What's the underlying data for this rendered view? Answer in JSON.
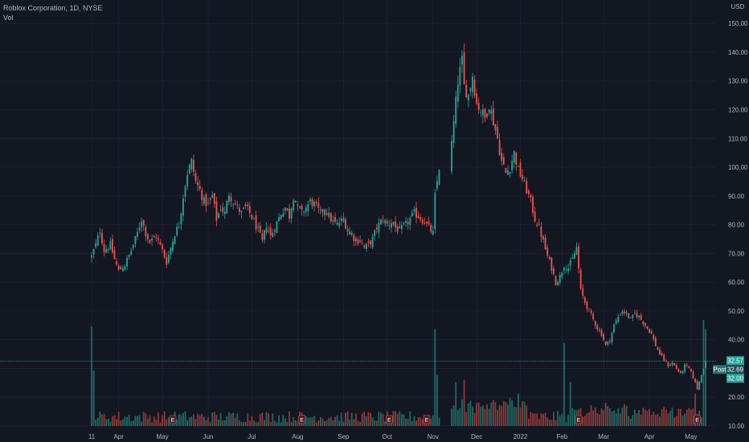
{
  "header": {
    "symbol_line": "Roblox Corporation, 1D, NYSE",
    "volume_label": "Vol",
    "currency": "USD"
  },
  "price_badges": {
    "close": "32.57",
    "post_label": "Post",
    "post": "32.69",
    "other": "32.00"
  },
  "earnings_marker": "E",
  "colors": {
    "background": "#131722",
    "grid": "#1e2230",
    "up": "#26a69a",
    "down": "#ef5350",
    "up_volume": "#1c6b64",
    "down_volume": "#8c3a38",
    "price_line": "#26a69a",
    "text": "#b2b5be",
    "earnings_badge": "#3d1f23"
  },
  "chart_data": {
    "type": "candlestick",
    "y_axis": {
      "ticks": [
        "150.00",
        "140.00",
        "130.00",
        "120.00",
        "110.00",
        "100.00",
        "90.00",
        "80.00",
        "70.00",
        "60.00",
        "50.00",
        "40.00",
        "30.00",
        "20.00",
        "10.00"
      ],
      "range": [
        10,
        152
      ]
    },
    "x_axis": {
      "labels": [
        "11",
        "Apr",
        "May",
        "Jun",
        "Jul",
        "Aug",
        "Sep",
        "Oct",
        "Nov",
        "Dec",
        "2022",
        "Feb",
        "Mar",
        "Apr",
        "May"
      ],
      "label_positions": [
        0,
        13,
        34,
        56,
        77,
        99,
        121,
        142,
        164,
        185,
        206,
        226,
        246,
        268,
        288
      ]
    },
    "total_bars": 296,
    "gap_bars": [
      [
        168,
        172
      ]
    ],
    "close_anchors": [
      [
        0,
        69
      ],
      [
        2,
        73
      ],
      [
        4,
        78
      ],
      [
        6,
        71
      ],
      [
        9,
        73
      ],
      [
        11,
        68
      ],
      [
        13,
        64
      ],
      [
        16,
        66
      ],
      [
        19,
        71
      ],
      [
        22,
        77
      ],
      [
        24,
        82
      ],
      [
        26,
        77
      ],
      [
        28,
        74
      ],
      [
        31,
        76
      ],
      [
        34,
        71
      ],
      [
        36,
        67
      ],
      [
        38,
        72
      ],
      [
        40,
        77
      ],
      [
        42,
        80
      ],
      [
        44,
        90
      ],
      [
        46,
        98
      ],
      [
        48,
        102
      ],
      [
        50,
        95
      ],
      [
        52,
        92
      ],
      [
        54,
        88
      ],
      [
        56,
        87
      ],
      [
        58,
        90
      ],
      [
        60,
        82
      ],
      [
        62,
        86
      ],
      [
        64,
        84
      ],
      [
        66,
        91
      ],
      [
        68,
        88
      ],
      [
        70,
        86
      ],
      [
        72,
        84
      ],
      [
        74,
        86
      ],
      [
        76,
        84
      ],
      [
        78,
        81
      ],
      [
        80,
        78
      ],
      [
        82,
        74
      ],
      [
        84,
        80
      ],
      [
        86,
        76
      ],
      [
        88,
        79
      ],
      [
        91,
        84
      ],
      [
        93,
        86
      ],
      [
        95,
        83
      ],
      [
        97,
        90
      ],
      [
        99,
        86
      ],
      [
        101,
        84
      ],
      [
        103,
        86
      ],
      [
        105,
        88
      ],
      [
        107,
        87
      ],
      [
        110,
        84
      ],
      [
        112,
        86
      ],
      [
        114,
        83
      ],
      [
        116,
        81
      ],
      [
        118,
        80
      ],
      [
        121,
        82
      ],
      [
        123,
        78
      ],
      [
        125,
        77
      ],
      [
        127,
        74
      ],
      [
        129,
        75
      ],
      [
        131,
        72
      ],
      [
        133,
        73
      ],
      [
        135,
        75
      ],
      [
        137,
        79
      ],
      [
        140,
        82
      ],
      [
        142,
        80
      ],
      [
        144,
        81
      ],
      [
        146,
        79
      ],
      [
        148,
        78
      ],
      [
        151,
        80
      ],
      [
        153,
        82
      ],
      [
        155,
        84
      ],
      [
        157,
        83
      ],
      [
        160,
        81
      ],
      [
        162,
        79
      ],
      [
        164,
        77
      ],
      [
        165,
        90
      ],
      [
        167,
        100
      ],
      [
        173,
        108
      ],
      [
        176,
        130
      ],
      [
        178,
        137
      ],
      [
        179,
        128
      ],
      [
        181,
        125
      ],
      [
        183,
        132
      ],
      [
        185,
        122
      ],
      [
        187,
        120
      ],
      [
        189,
        117
      ],
      [
        191,
        122
      ],
      [
        193,
        116
      ],
      [
        195,
        110
      ],
      [
        197,
        102
      ],
      [
        199,
        98
      ],
      [
        201,
        100
      ],
      [
        203,
        105
      ],
      [
        205,
        99
      ],
      [
        207,
        96
      ],
      [
        209,
        92
      ],
      [
        211,
        88
      ],
      [
        213,
        82
      ],
      [
        215,
        79
      ],
      [
        217,
        74
      ],
      [
        219,
        69
      ],
      [
        221,
        65
      ],
      [
        223,
        60
      ],
      [
        225,
        62
      ],
      [
        227,
        66
      ],
      [
        229,
        65
      ],
      [
        231,
        68
      ],
      [
        233,
        72
      ],
      [
        235,
        57
      ],
      [
        237,
        53
      ],
      [
        239,
        50
      ],
      [
        241,
        47
      ],
      [
        243,
        44
      ],
      [
        245,
        42
      ],
      [
        247,
        38
      ],
      [
        249,
        40
      ],
      [
        251,
        45
      ],
      [
        253,
        48
      ],
      [
        255,
        50
      ],
      [
        257,
        49
      ],
      [
        259,
        47
      ],
      [
        261,
        49
      ],
      [
        263,
        48
      ],
      [
        265,
        46
      ],
      [
        267,
        44
      ],
      [
        269,
        42
      ],
      [
        271,
        38
      ],
      [
        273,
        35
      ],
      [
        275,
        33
      ],
      [
        277,
        31
      ],
      [
        279,
        32
      ],
      [
        281,
        30
      ],
      [
        283,
        28
      ],
      [
        285,
        31
      ],
      [
        287,
        30
      ],
      [
        289,
        27
      ],
      [
        291,
        23
      ],
      [
        293,
        28
      ],
      [
        295,
        32.57
      ]
    ],
    "volume_spikes": [
      [
        0,
        43
      ],
      [
        1,
        24
      ],
      [
        165,
        42
      ],
      [
        166,
        22
      ],
      [
        175,
        19
      ],
      [
        179,
        20
      ],
      [
        205,
        14
      ],
      [
        227,
        36
      ],
      [
        230,
        19
      ],
      [
        294,
        46
      ],
      [
        295,
        42
      ],
      [
        290,
        14
      ]
    ],
    "volume_axis": {
      "range": [
        0,
        46
      ]
    },
    "earnings_positions": [
      39,
      101,
      143,
      161,
      234,
      291
    ],
    "last_close": 32.57,
    "post_price": 32.69,
    "other_price": 32.0,
    "series": [
      {
        "name": "Vol"
      }
    ]
  }
}
